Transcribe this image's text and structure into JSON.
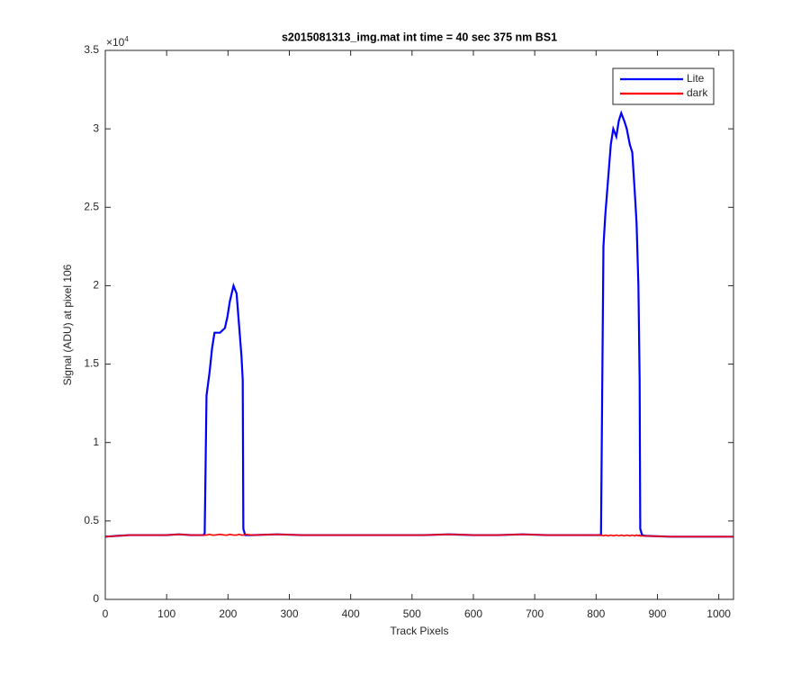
{
  "chart_data": {
    "type": "line",
    "title": "s2015081313_img.mat int time = 40 sec  375 nm BS1",
    "x_label": "Track Pixels",
    "y_label": "Signal (ADU) at pixel 106",
    "y_multiplier": {
      "base": "×10",
      "exponent": "4"
    },
    "xlim": [
      0,
      1024
    ],
    "ylim": [
      0,
      3.5
    ],
    "xticks": [
      0,
      100,
      200,
      300,
      400,
      500,
      600,
      700,
      800,
      900,
      1000
    ],
    "yticks": [
      0,
      0.5,
      1,
      1.5,
      2,
      2.5,
      3,
      3.5
    ],
    "legend": "northeast",
    "grid": false,
    "x": [
      0,
      20,
      40,
      60,
      80,
      100,
      120,
      140,
      160,
      162,
      165,
      170,
      174,
      178,
      187,
      195,
      199,
      203,
      209,
      214,
      218,
      222,
      224,
      225,
      228,
      240,
      280,
      320,
      360,
      400,
      440,
      480,
      520,
      560,
      600,
      640,
      680,
      720,
      760,
      800,
      808,
      812,
      815,
      820,
      824,
      828,
      833,
      837,
      841,
      846,
      850,
      855,
      859,
      863,
      866,
      869,
      871,
      872,
      875,
      880,
      920,
      960,
      1000,
      1024
    ],
    "series": [
      {
        "name": "Lite",
        "color": "#0000ff",
        "values": [
          0.4,
          0.405,
          0.41,
          0.41,
          0.41,
          0.41,
          0.415,
          0.41,
          0.41,
          0.42,
          1.3,
          1.45,
          1.6,
          1.7,
          1.7,
          1.73,
          1.8,
          1.9,
          2.0,
          1.95,
          1.75,
          1.55,
          1.4,
          0.45,
          0.41,
          0.41,
          0.415,
          0.41,
          0.41,
          0.41,
          0.41,
          0.41,
          0.41,
          0.415,
          0.41,
          0.41,
          0.415,
          0.41,
          0.41,
          0.41,
          0.41,
          2.25,
          2.45,
          2.7,
          2.9,
          3.0,
          2.95,
          3.05,
          3.1,
          3.05,
          3.0,
          2.9,
          2.85,
          2.6,
          2.4,
          2.0,
          1.4,
          0.45,
          0.41,
          0.405,
          0.4,
          0.4,
          0.4,
          0.4
        ]
      },
      {
        "name": "dark",
        "color": "#ff0000",
        "values": [
          0.4,
          0.405,
          0.41,
          0.41,
          0.41,
          0.41,
          0.415,
          0.41,
          0.41,
          0.41,
          0.41,
          0.415,
          0.41,
          0.41,
          0.415,
          0.41,
          0.41,
          0.415,
          0.41,
          0.41,
          0.415,
          0.41,
          0.41,
          0.41,
          0.415,
          0.41,
          0.415,
          0.41,
          0.41,
          0.41,
          0.41,
          0.41,
          0.41,
          0.415,
          0.41,
          0.41,
          0.415,
          0.41,
          0.41,
          0.41,
          0.41,
          0.405,
          0.41,
          0.405,
          0.41,
          0.405,
          0.41,
          0.405,
          0.41,
          0.405,
          0.41,
          0.405,
          0.41,
          0.405,
          0.41,
          0.405,
          0.41,
          0.405,
          0.405,
          0.405,
          0.4,
          0.4,
          0.4,
          0.4
        ]
      }
    ]
  }
}
